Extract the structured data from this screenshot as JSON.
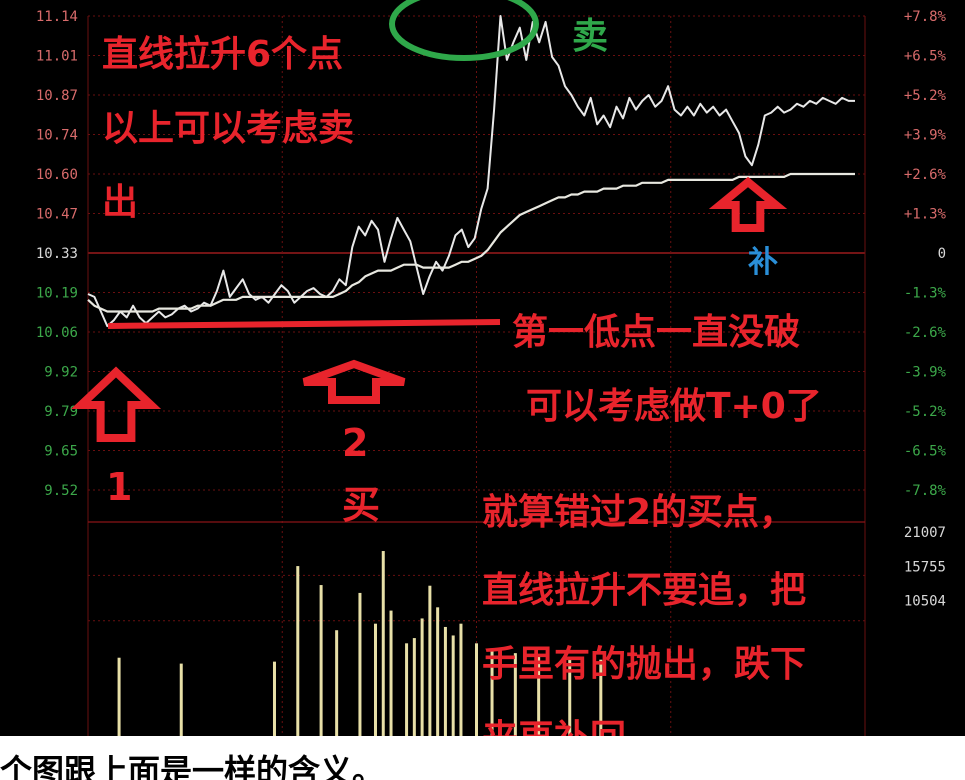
{
  "chart_data": {
    "type": "line",
    "title": "",
    "price_ticks": [
      "11.14",
      "11.01",
      "10.87",
      "10.74",
      "10.60",
      "10.47",
      "10.33",
      "10.19",
      "10.06",
      "9.92",
      "9.79",
      "9.65",
      "9.52"
    ],
    "pct_ticks": [
      "+7.8%",
      "+6.5%",
      "+5.2%",
      "+3.9%",
      "+2.6%",
      "+1.3%",
      "0",
      "-1.3%",
      "-2.6%",
      "-3.9%",
      "-5.2%",
      "-6.5%",
      "-7.8%"
    ],
    "volume_ticks": [
      "21007",
      "15755",
      "10504"
    ],
    "ylim": [
      9.52,
      11.14
    ],
    "prev_close": 10.33,
    "series": [
      {
        "values": [
          10.19,
          10.18,
          10.13,
          10.08,
          10.1,
          10.13,
          10.11,
          10.15,
          10.11,
          10.09,
          10.11,
          10.13,
          10.11,
          10.12,
          10.14,
          10.15,
          10.13,
          10.14,
          10.16,
          10.15,
          10.2,
          10.27,
          10.18,
          10.21,
          10.24,
          10.19,
          10.17,
          10.18,
          10.16,
          10.19,
          10.22,
          10.2,
          10.16,
          10.18,
          10.2,
          10.21,
          10.19,
          10.18,
          10.2,
          10.24,
          10.22,
          10.35,
          10.42,
          10.39,
          10.44,
          10.41,
          10.3,
          10.38,
          10.45,
          10.41,
          10.37,
          10.28,
          10.19,
          10.25,
          10.3,
          10.27,
          10.32,
          10.39,
          10.41,
          10.35,
          10.38,
          10.48,
          10.55,
          10.82,
          11.14,
          10.99,
          11.05,
          11.1,
          10.99,
          11.12,
          11.05,
          11.12,
          11.0,
          10.97,
          10.9,
          10.87,
          10.83,
          10.8,
          10.86,
          10.77,
          10.8,
          10.76,
          10.83,
          10.79,
          10.86,
          10.82,
          10.85,
          10.87,
          10.83,
          10.85,
          10.9,
          10.82,
          10.8,
          10.83,
          10.8,
          10.84,
          10.81,
          10.83,
          10.8,
          10.82,
          10.78,
          10.74,
          10.66,
          10.63,
          10.7,
          10.8,
          10.81,
          10.83,
          10.81,
          10.82,
          10.84,
          10.83,
          10.85,
          10.84,
          10.86,
          10.85,
          10.84,
          10.86,
          10.85,
          10.85
        ]
      },
      {
        "values": [
          10.17,
          10.15,
          10.14,
          10.13,
          10.13,
          10.13,
          10.13,
          10.13,
          10.13,
          10.13,
          10.13,
          10.14,
          10.14,
          10.14,
          10.14,
          10.14,
          10.14,
          10.15,
          10.15,
          10.15,
          10.16,
          10.17,
          10.17,
          10.17,
          10.18,
          10.18,
          10.18,
          10.18,
          10.18,
          10.18,
          10.18,
          10.18,
          10.18,
          10.18,
          10.18,
          10.18,
          10.18,
          10.18,
          10.18,
          10.19,
          10.2,
          10.22,
          10.23,
          10.25,
          10.26,
          10.27,
          10.27,
          10.27,
          10.28,
          10.29,
          10.29,
          10.29,
          10.28,
          10.28,
          10.28,
          10.28,
          10.28,
          10.29,
          10.3,
          10.3,
          10.31,
          10.32,
          10.34,
          10.37,
          10.4,
          10.42,
          10.44,
          10.46,
          10.47,
          10.48,
          10.49,
          10.5,
          10.51,
          10.52,
          10.52,
          10.53,
          10.53,
          10.54,
          10.54,
          10.54,
          10.55,
          10.55,
          10.55,
          10.56,
          10.56,
          10.56,
          10.57,
          10.57,
          10.57,
          10.57,
          10.58,
          10.58,
          10.58,
          10.58,
          10.58,
          10.58,
          10.58,
          10.58,
          10.58,
          10.58,
          10.58,
          10.59,
          10.59,
          10.59,
          10.59,
          10.59,
          10.59,
          10.59,
          10.59,
          10.6,
          10.6,
          10.6,
          10.6,
          10.6,
          10.6,
          10.6,
          10.6,
          10.6,
          10.6,
          10.6
        ]
      }
    ],
    "volume": [
      {
        "x": 0.04,
        "v": 1800
      },
      {
        "x": 0.12,
        "v": 900
      },
      {
        "x": 0.24,
        "v": 1200
      },
      {
        "x": 0.27,
        "v": 15800
      },
      {
        "x": 0.3,
        "v": 12900
      },
      {
        "x": 0.32,
        "v": 6000
      },
      {
        "x": 0.35,
        "v": 11700
      },
      {
        "x": 0.37,
        "v": 7000
      },
      {
        "x": 0.38,
        "v": 18100
      },
      {
        "x": 0.39,
        "v": 9000
      },
      {
        "x": 0.41,
        "v": 4000
      },
      {
        "x": 0.42,
        "v": 4800
      },
      {
        "x": 0.43,
        "v": 7800
      },
      {
        "x": 0.44,
        "v": 12800
      },
      {
        "x": 0.45,
        "v": 9500
      },
      {
        "x": 0.46,
        "v": 6500
      },
      {
        "x": 0.47,
        "v": 5200
      },
      {
        "x": 0.48,
        "v": 7000
      },
      {
        "x": 0.5,
        "v": 4000
      },
      {
        "x": 0.52,
        "v": 3000
      },
      {
        "x": 0.55,
        "v": 2500
      },
      {
        "x": 0.58,
        "v": 2000
      },
      {
        "x": 0.62,
        "v": 1800
      },
      {
        "x": 0.66,
        "v": 1500
      }
    ]
  },
  "annotations": {
    "line1": "直线拉升6个点",
    "line2": "以上可以考虑卖",
    "line3": "出",
    "sell": "卖",
    "buy_label": "买",
    "bu": "补",
    "low1": "第一低点一直没破",
    "low2": "可以考虑做T+0了",
    "note1": "就算错过2的买点，",
    "note2": "直线拉升不要追，把",
    "note3": "手里有的抛出，跌下",
    "note4": "来再补回。",
    "num1": "1",
    "num2": "2",
    "footer": "个图跟上面是一样的含义。"
  },
  "colors": {
    "price_line": "#e8e8e8",
    "avg_line": "#e8e8e0",
    "annot_red": "#e8242c",
    "sell_green": "#2fa84a",
    "bu_blue": "#2a8fd8",
    "up_tick": "#d86b6b",
    "down_tick": "#3ca84a",
    "grid": "#6a0f10",
    "volume_bar": "#e8e0a8"
  }
}
